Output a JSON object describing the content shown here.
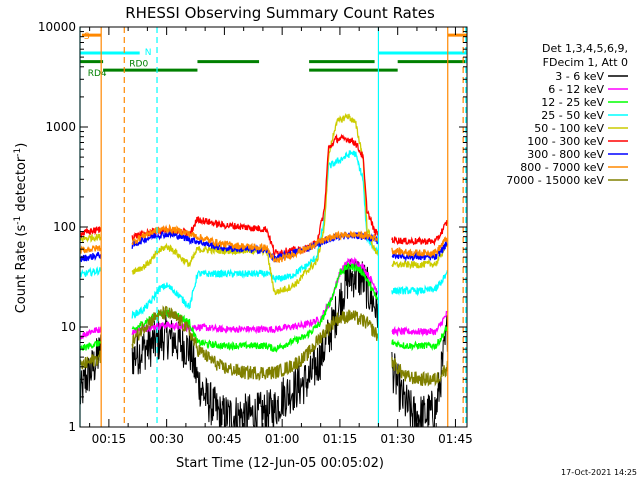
{
  "chart_data": {
    "type": "line",
    "title": "RHESSI Observing Summary Count Rates",
    "xlabel": "Start Time (12-Jun-05 00:05:02)",
    "ylabel_main": "Count Rate (s",
    "ylabel_sup1": "-1",
    "ylabel_mid": " detector",
    "ylabel_sup2": "-1",
    "ylabel_end": ")",
    "yscale": "log",
    "ylim": [
      1,
      10000
    ],
    "xlim_min": [
      7.5,
      108
    ],
    "yticks": [
      1,
      10,
      100,
      1000,
      10000
    ],
    "ytick_labels": [
      "1",
      "10",
      "100",
      "1000",
      "10000"
    ],
    "xticks_min": [
      15,
      30,
      45,
      60,
      75,
      90,
      105
    ],
    "xtick_labels": [
      "00:15",
      "00:30",
      "00:45",
      "01:00",
      "01:15",
      "01:30",
      "01:45"
    ],
    "footer_date": "17-Oct-2021 14:25",
    "legend": {
      "header1": "Det 1,3,4,5,6,9,",
      "header2": "FDecim 1, Att 0",
      "entries": [
        {
          "label": "3 - 6 keV",
          "color": "#000000"
        },
        {
          "label": "6 - 12 keV",
          "color": "#ff00ff"
        },
        {
          "label": "12 - 25 keV",
          "color": "#00ff00"
        },
        {
          "label": "25 - 50 keV",
          "color": "#00ffff"
        },
        {
          "label": "50 - 100 keV",
          "color": "#cccc00"
        },
        {
          "label": "100 - 300 keV",
          "color": "#ff0000"
        },
        {
          "label": "300 - 800 keV",
          "color": "#0000ff"
        },
        {
          "label": "800 - 7000 keV",
          "color": "#ff8800"
        },
        {
          "label": "7000 - 15000 keV",
          "color": "#808000"
        }
      ]
    },
    "flags": [
      {
        "label": "S",
        "color": "#ff8800",
        "level": 8300,
        "segments": [
          [
            8,
            13
          ],
          [
            103,
            108
          ]
        ]
      },
      {
        "label": "N",
        "color": "#00ffff",
        "level": 5500,
        "segments": [
          [
            7.5,
            23
          ],
          [
            85,
            108
          ]
        ]
      },
      {
        "label": "RD0",
        "color": "#008000",
        "level": 4500,
        "segments": [
          [
            7.5,
            13.5
          ],
          [
            38,
            54
          ],
          [
            67,
            84
          ],
          [
            90,
            108
          ]
        ]
      },
      {
        "label": "RD4",
        "color": "#008000",
        "level": 3700,
        "segments": [
          [
            13.5,
            38
          ],
          [
            67,
            90
          ]
        ]
      }
    ],
    "vlines": [
      {
        "x": 7.5,
        "color": "#00ffff",
        "dash": false
      },
      {
        "x": 13,
        "color": "#ff8800",
        "dash": false
      },
      {
        "x": 19,
        "color": "#ff8800",
        "dash": true
      },
      {
        "x": 27.5,
        "color": "#00ffff",
        "dash": true
      },
      {
        "x": 85,
        "color": "#00ffff",
        "dash": false
      },
      {
        "x": 103,
        "color": "#ff8800",
        "dash": false
      },
      {
        "x": 107,
        "color": "#ff8800",
        "dash": true
      },
      {
        "x": 107.7,
        "color": "#00ffff",
        "dash": true
      }
    ],
    "gaps_min": [
      [
        13,
        21
      ],
      [
        85,
        88.5
      ],
      [
        103,
        108
      ]
    ],
    "series": [
      {
        "name": "3 - 6 keV",
        "color": "#000000",
        "x": [
          7.5,
          9,
          11,
          13,
          21,
          24,
          27,
          30,
          33,
          36,
          38,
          40,
          44,
          48,
          52,
          56,
          58,
          60,
          64,
          67,
          70,
          73,
          75,
          77,
          79,
          81,
          83,
          85,
          88.5,
          91,
          94,
          97,
          100,
          103
        ],
        "y": [
          2,
          3,
          4,
          6,
          5,
          6,
          7,
          8,
          7,
          6,
          3,
          2,
          1.3,
          1.3,
          1.3,
          1.4,
          1.5,
          2,
          2.5,
          3,
          5,
          10,
          18,
          30,
          33,
          30,
          20,
          14,
          4,
          2,
          1.3,
          1.3,
          1.5,
          10
        ]
      },
      {
        "name": "6 - 12 keV",
        "color": "#ff00ff",
        "x": [
          7.5,
          10,
          13,
          21,
          26,
          30,
          34,
          38,
          44,
          50,
          56,
          58,
          62,
          66,
          70,
          73,
          75,
          77,
          79,
          81,
          83,
          85,
          88.5,
          92,
          96,
          100,
          103
        ],
        "y": [
          8,
          9,
          9.5,
          9,
          10,
          10.5,
          10,
          10,
          9.5,
          9.5,
          9.5,
          9.5,
          10,
          10.5,
          12,
          20,
          35,
          45,
          45,
          40,
          30,
          22,
          9,
          9,
          9,
          9,
          14
        ]
      },
      {
        "name": "12 - 25 keV",
        "color": "#00ff00",
        "x": [
          7.5,
          10,
          13,
          21,
          24,
          27,
          30,
          33,
          36,
          38,
          44,
          50,
          56,
          58,
          62,
          66,
          70,
          73,
          75,
          77,
          79,
          81,
          83,
          85,
          88.5,
          92,
          96,
          100,
          103
        ],
        "y": [
          6,
          6.5,
          7,
          9,
          11,
          13,
          14,
          13,
          11,
          7,
          6.5,
          6.5,
          6.5,
          6,
          7,
          8,
          11,
          20,
          35,
          40,
          40,
          35,
          25,
          18,
          7,
          6.5,
          6.5,
          6.5,
          10
        ]
      },
      {
        "name": "25 - 50 keV",
        "color": "#00ffff",
        "x": [
          7.5,
          10,
          13,
          21,
          24,
          26,
          28,
          30,
          32,
          34,
          36,
          38,
          44,
          50,
          56,
          58,
          62,
          66,
          69,
          71,
          72,
          78,
          79,
          81,
          82,
          84,
          85,
          88.5,
          92,
          96,
          100,
          103
        ],
        "y": [
          33,
          35,
          37,
          13,
          15,
          18,
          24,
          26,
          23,
          19,
          16,
          34,
          34,
          34,
          34,
          30,
          32,
          40,
          50,
          120,
          400,
          550,
          540,
          300,
          80,
          60,
          58,
          23,
          23,
          23,
          24,
          35
        ]
      },
      {
        "name": "50 - 100 keV",
        "color": "#cccc00",
        "x": [
          7.5,
          10,
          13,
          21,
          24,
          26,
          28,
          30,
          32,
          34,
          36,
          38,
          44,
          50,
          56,
          58,
          62,
          64,
          66,
          69,
          71,
          72,
          74,
          77,
          79,
          81,
          82,
          84,
          85,
          88.5,
          92,
          96,
          100,
          103
        ],
        "y": [
          75,
          78,
          80,
          36,
          40,
          46,
          58,
          64,
          58,
          48,
          42,
          60,
          58,
          58,
          58,
          22,
          25,
          28,
          35,
          45,
          100,
          500,
          1100,
          1300,
          1100,
          500,
          100,
          58,
          56,
          42,
          42,
          42,
          43,
          70
        ]
      },
      {
        "name": "100 - 300 keV",
        "color": "#ff0000",
        "x": [
          7.5,
          10,
          13,
          21,
          24,
          27,
          30,
          33,
          36,
          38,
          44,
          50,
          56,
          58,
          62,
          66,
          69,
          71,
          72,
          74,
          77,
          79,
          81,
          82,
          84,
          85,
          88.5,
          92,
          96,
          100,
          103
        ],
        "y": [
          85,
          90,
          95,
          80,
          85,
          90,
          92,
          90,
          85,
          120,
          105,
          100,
          95,
          55,
          58,
          60,
          70,
          150,
          600,
          760,
          760,
          700,
          500,
          150,
          90,
          85,
          75,
          72,
          72,
          72,
          115
        ]
      },
      {
        "name": "300 - 800 keV",
        "color": "#0000ff",
        "x": [
          7.5,
          10,
          13,
          21,
          24,
          27,
          30,
          33,
          36,
          38,
          44,
          50,
          56,
          58,
          62,
          66,
          70,
          74,
          78,
          82,
          85,
          88.5,
          92,
          96,
          100,
          103
        ],
        "y": [
          48,
          50,
          53,
          65,
          75,
          82,
          85,
          82,
          75,
          72,
          62,
          60,
          58,
          48,
          54,
          60,
          70,
          80,
          82,
          80,
          72,
          53,
          51,
          50,
          50,
          70
        ]
      },
      {
        "name": "800 - 7000 keV",
        "color": "#ff8800",
        "x": [
          7.5,
          10,
          13,
          21,
          24,
          27,
          30,
          33,
          36,
          38,
          44,
          50,
          56,
          58,
          62,
          66,
          70,
          74,
          78,
          82,
          85,
          88.5,
          92,
          96,
          100,
          103
        ],
        "y": [
          58,
          60,
          62,
          70,
          82,
          92,
          96,
          92,
          85,
          80,
          68,
          64,
          62,
          45,
          52,
          60,
          72,
          82,
          84,
          82,
          76,
          58,
          56,
          55,
          56,
          80
        ]
      },
      {
        "name": "7000 - 15000 keV",
        "color": "#808000",
        "x": [
          7.5,
          10,
          13,
          21,
          24,
          27,
          30,
          33,
          36,
          38,
          44,
          50,
          56,
          58,
          62,
          66,
          70,
          74,
          78,
          82,
          85,
          88.5,
          92,
          96,
          100,
          103
        ],
        "y": [
          4,
          4.5,
          5,
          7,
          10,
          12.5,
          14,
          12,
          9,
          6,
          4,
          3.5,
          3.5,
          3.5,
          4,
          5,
          8,
          12,
          13,
          11,
          8,
          4.5,
          3.2,
          3,
          3,
          4
        ]
      }
    ]
  }
}
